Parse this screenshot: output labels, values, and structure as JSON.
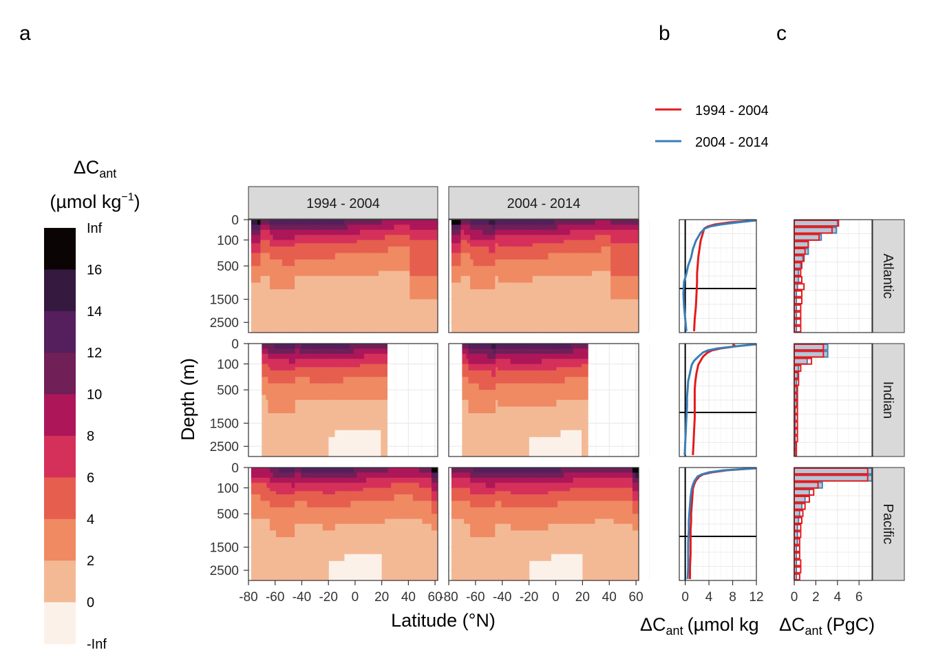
{
  "panel_letters": {
    "a": "a",
    "b": "b",
    "c": "c"
  },
  "colorbar": {
    "title_line1_main": "ΔC",
    "title_line1_sub": "ant",
    "title_line2_pre": "(µmol kg",
    "title_line2_sup": "−1",
    "title_line2_post": ")",
    "labels": [
      "Inf",
      "16",
      "14",
      "12",
      "10",
      "8",
      "6",
      "4",
      "2",
      "0",
      "-Inf"
    ],
    "colors": [
      "#0b0405",
      "#35193e",
      "#541f5c",
      "#701f57",
      "#ad1759",
      "#d5305a",
      "#e65e4e",
      "#ef8a62",
      "#f3b995",
      "#fcf1e9"
    ]
  },
  "panel_a": {
    "facets_col": [
      "1994 - 2004",
      "2004 - 2014"
    ],
    "ylabel": "Depth (m)",
    "xlabel": "Latitude (°N)",
    "y_ticks": [
      "0",
      "100",
      "500",
      "1500",
      "2500"
    ],
    "x_ticks": [
      "-80",
      "-60",
      "-40",
      "-20",
      "0",
      "20",
      "40",
      "60"
    ]
  },
  "chart_data": [
    {
      "type": "heatmap",
      "panel": "a",
      "facets": {
        "rows": [
          "Atlantic",
          "Indian",
          "Pacific"
        ],
        "cols": [
          "1994 - 2004",
          "2004 - 2014"
        ]
      },
      "xlabel": "Latitude (°N)",
      "ylabel": "Depth (m)",
      "xlim": [
        -80,
        62
      ],
      "y_ticks": [
        0,
        100,
        500,
        1500,
        2500
      ],
      "levels": [
        "-Inf",
        0,
        2,
        4,
        6,
        8,
        10,
        12,
        14,
        16,
        "Inf"
      ],
      "latitude_extent": {
        "Atlantic": [
          -78,
          62
        ],
        "Indian": [
          -70,
          24
        ],
        "Pacific": [
          -78,
          62
        ]
      },
      "grid": true
    },
    {
      "type": "line",
      "panel": "b",
      "xlabel_main": "ΔC",
      "xlabel_sub": "ant",
      "xlabel_post": "(µmol kg",
      "x_ticks": [
        0,
        4,
        8,
        12
      ],
      "xlim": [
        -1,
        12
      ],
      "y": [
        0,
        50,
        100,
        150,
        200,
        300,
        400,
        500,
        700,
        900,
        1100,
        1300,
        1500,
        1800,
        2100,
        2400,
        2700
      ],
      "legend": {
        "position": "top",
        "entries": [
          "1994 - 2004",
          "2004 - 2014"
        ]
      },
      "series": [
        {
          "name": "1994 - 2004",
          "color": "#e41a1c",
          "profiles": {
            "Atlantic": [
              12.0,
              7.5,
              5.0,
              3.8,
              3.2,
              3.0,
              2.8,
              2.6,
              2.4,
              2.2,
              2.1,
              2.0,
              2.0,
              1.9,
              1.8,
              1.6,
              1.5
            ],
            "Indian": [
              8.0,
              8.5,
              6.0,
              4.5,
              3.8,
              3.0,
              2.6,
              2.2,
              1.9,
              1.7,
              1.6,
              1.6,
              1.6,
              1.6,
              1.5,
              1.4,
              1.3
            ],
            "Pacific": [
              12.0,
              7.0,
              4.5,
              3.0,
              2.4,
              1.8,
              1.5,
              1.3,
              1.2,
              1.1,
              1.0,
              1.0,
              0.9,
              0.9,
              0.9,
              0.8,
              0.8
            ]
          }
        },
        {
          "name": "2004 - 2014",
          "color": "#377eb8",
          "profiles": {
            "Atlantic": [
              12.0,
              8.8,
              6.0,
              4.2,
              3.3,
              2.6,
              2.2,
              1.8,
              1.3,
              1.0,
              0.5,
              0.2,
              -0.2,
              -0.3,
              -0.2,
              0.0,
              0.2
            ],
            "Indian": [
              12.0,
              8.5,
              5.5,
              3.8,
              3.0,
              2.2,
              1.5,
              1.1,
              0.8,
              0.5,
              0.4,
              0.3,
              0.3,
              0.2,
              0.1,
              0.0,
              -0.1
            ],
            "Pacific": [
              12.0,
              6.5,
              4.0,
              2.8,
              2.1,
              1.6,
              1.3,
              1.1,
              0.9,
              0.8,
              0.7,
              0.6,
              0.6,
              0.5,
              0.5,
              0.5,
              0.4
            ]
          }
        }
      ]
    },
    {
      "type": "bar",
      "panel": "c",
      "xlabel_main": "ΔC",
      "xlabel_sub": "ant",
      "xlabel_post": "(PgC)",
      "x_ticks": [
        0,
        2,
        4,
        6
      ],
      "xlim": [
        0,
        7.2
      ],
      "bins": 16,
      "facets": [
        "Atlantic",
        "Indian",
        "Pacific"
      ],
      "series": [
        {
          "name": "1994 - 2004",
          "color": "#e41a1c",
          "values": {
            "Atlantic": [
              4.1,
              3.5,
              2.3,
              1.3,
              1.0,
              0.9,
              0.7,
              0.6,
              0.7,
              0.9,
              0.7,
              0.7,
              0.6,
              0.6,
              0.6,
              0.6
            ],
            "Indian": [
              2.7,
              2.7,
              1.6,
              0.6,
              0.4,
              0.4,
              0.3,
              0.3,
              0.3,
              0.3,
              0.3,
              0.3,
              0.3,
              0.3,
              0.2,
              0.2
            ],
            "Pacific": [
              6.8,
              6.8,
              2.2,
              1.8,
              1.4,
              1.0,
              0.8,
              0.7,
              0.6,
              0.6,
              0.5,
              0.5,
              0.5,
              0.6,
              0.6,
              0.5
            ]
          }
        },
        {
          "name": "2004 - 2014",
          "color": "#4682b4",
          "values": {
            "Atlantic": [
              4.0,
              3.9,
              2.5,
              1.3,
              1.3,
              0.8,
              0.6,
              0.4,
              0.4,
              0.3,
              0.2,
              0.2,
              0.2,
              0.2,
              0.2,
              0.2
            ],
            "Indian": [
              3.1,
              3.1,
              1.2,
              0.4,
              0.3,
              0.2,
              0.2,
              0.2,
              0.2,
              0.1,
              0.1,
              0.1,
              0.1,
              0.1,
              0.1,
              0.1
            ],
            "Pacific": [
              7.2,
              7.2,
              2.6,
              1.4,
              1.0,
              0.7,
              0.5,
              0.4,
              0.3,
              0.3,
              0.3,
              0.2,
              0.2,
              0.2,
              0.2,
              0.2
            ]
          }
        }
      ]
    }
  ]
}
